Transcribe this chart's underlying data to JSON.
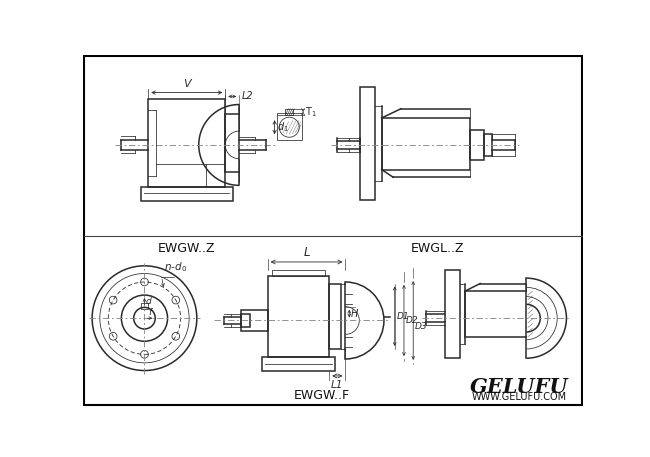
{
  "bg_color": "#ffffff",
  "line_color": "#2a2a2a",
  "cl_color": "#888888",
  "title_top_left": "EWGW..Z",
  "title_top_right": "EWGL..Z",
  "title_bottom_center": "EWGW..F",
  "brand_name": "GELUFU",
  "brand_url": "WWW.GELUFU.COM",
  "lw_main": 1.1,
  "lw_thin": 0.55,
  "lw_cl": 0.65
}
